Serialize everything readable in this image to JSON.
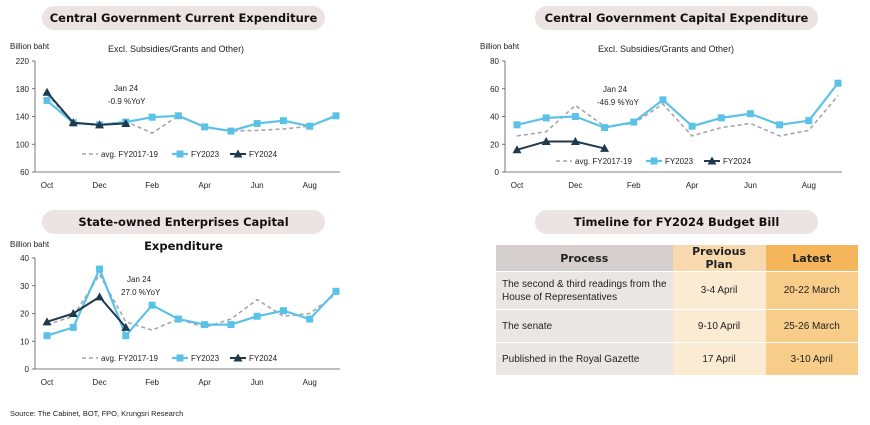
{
  "pills": {
    "p1": "Central Government Current Expenditure",
    "p2": "Central Government Capital Expenditure",
    "p3": "State-owned Enterprises Capital Expenditure",
    "p4": "Timeline for FY2024 Budget Bill"
  },
  "colors": {
    "fy2023": "#5bc2e7",
    "fy2024": "#1f3a4d",
    "avg": "#a6a6a6"
  },
  "chart_data": [
    {
      "type": "line",
      "title": "Central Government Current Expenditure",
      "subtitle": "Excl. Subsidies/Grants and Other)",
      "ylabel": "Billion baht",
      "ylim": [
        60,
        220
      ],
      "yticks": [
        "60",
        "100",
        "140",
        "180",
        "220"
      ],
      "xticklabels": [
        "Oct",
        "Dec",
        "Feb",
        "Apr",
        "Jun",
        "Aug"
      ],
      "categories": [
        "Oct",
        "Nov",
        "Dec",
        "Jan",
        "Feb",
        "Mar",
        "Apr",
        "May",
        "Jun",
        "Jul",
        "Aug",
        "Sep"
      ],
      "annotation": [
        "Jan 24",
        "-0.9 %YoY"
      ],
      "legend": [
        "avg. FY2017-19",
        "FY2023",
        "FY2024"
      ],
      "series": [
        {
          "name": "avg. FY2017-19",
          "values": [
            172,
            130,
            128,
            133,
            116,
            141,
            125,
            119,
            120,
            122,
            126,
            142
          ]
        },
        {
          "name": "FY2023",
          "values": [
            163,
            131,
            128,
            132,
            139,
            141,
            125,
            119,
            130,
            134,
            126,
            141
          ]
        },
        {
          "name": "FY2024",
          "values": [
            175,
            131,
            128,
            130,
            null,
            null,
            null,
            null,
            null,
            null,
            null,
            null
          ]
        }
      ]
    },
    {
      "type": "line",
      "title": "Central Government Capital Expenditure",
      "subtitle": "Excl. Subsidies/Grants and Other)",
      "ylabel": "Billion baht",
      "ylim": [
        0,
        80
      ],
      "yticks": [
        "0",
        "20",
        "40",
        "60",
        "80"
      ],
      "xticklabels": [
        "Oct",
        "Dec",
        "Feb",
        "Apr",
        "Jun",
        "Aug"
      ],
      "categories": [
        "Oct",
        "Nov",
        "Dec",
        "Jan",
        "Feb",
        "Mar",
        "Apr",
        "May",
        "Jun",
        "Jul",
        "Aug",
        "Sep"
      ],
      "annotation": [
        "Jan 24",
        "-46.9 %YoY"
      ],
      "legend": [
        "avg. FY2017-19",
        "FY2023",
        "FY2024"
      ],
      "series": [
        {
          "name": "avg. FY2017-19",
          "values": [
            26,
            29,
            48,
            33,
            35,
            49,
            26,
            32,
            35,
            26,
            30,
            55
          ]
        },
        {
          "name": "FY2023",
          "values": [
            34,
            39,
            40,
            32,
            36,
            52,
            33,
            39,
            42,
            34,
            37,
            64
          ]
        },
        {
          "name": "FY2024",
          "values": [
            16,
            22,
            22,
            17,
            null,
            null,
            null,
            null,
            null,
            null,
            null,
            null
          ]
        }
      ]
    },
    {
      "type": "line",
      "title": "State-owned Enterprises Capital Expenditure",
      "ylabel": "Billion baht",
      "ylim": [
        0,
        40
      ],
      "yticks": [
        "0",
        "10",
        "20",
        "30",
        "40"
      ],
      "xticklabels": [
        "Oct",
        "Dec",
        "Feb",
        "Apr",
        "Jun",
        "Aug"
      ],
      "categories": [
        "Oct",
        "Nov",
        "Dec",
        "Jan",
        "Feb",
        "Mar",
        "Apr",
        "May",
        "Jun",
        "Jul",
        "Aug",
        "Sep"
      ],
      "annotation": [
        "Jan 24",
        "27.0 %YoY"
      ],
      "legend": [
        "avg. FY2017-19",
        "FY2023",
        "FY2024"
      ],
      "series": [
        {
          "name": "avg. FY2017-19",
          "values": [
            16,
            19,
            34,
            17,
            14,
            18,
            15,
            18,
            25,
            19,
            20,
            27
          ]
        },
        {
          "name": "FY2023",
          "values": [
            12,
            15,
            36,
            12,
            23,
            18,
            16,
            16,
            19,
            21,
            18,
            28
          ]
        },
        {
          "name": "FY2024",
          "values": [
            17,
            20,
            26,
            15,
            null,
            null,
            null,
            null,
            null,
            null,
            null,
            null
          ]
        }
      ]
    }
  ],
  "timeline": {
    "headers": [
      "Process",
      "Previous Plan",
      "Latest"
    ],
    "rows": [
      [
        "The second & third readings from the House of Representatives",
        "3-4 April",
        "20-22 March"
      ],
      [
        "The senate",
        "9-10 April",
        "25-26 March"
      ],
      [
        "Published in the Royal Gazette",
        "17 April",
        "3-10 April"
      ]
    ]
  },
  "source": "Source: The Cabinet, BOT, FPO, Krungsri Research"
}
